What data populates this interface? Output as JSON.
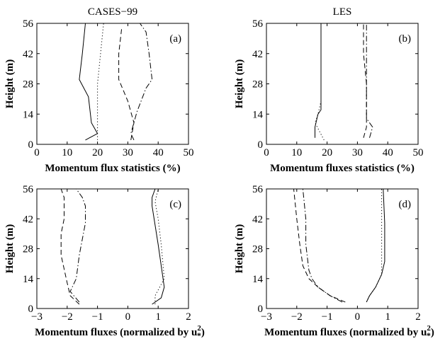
{
  "chart_data": [
    {
      "panel": "a",
      "type": "line",
      "title": "CASES−99",
      "annotation": "(a)",
      "xlabel": "Momentum flux statistics (%)",
      "ylabel": "Height (m)",
      "xlim": [
        0,
        50
      ],
      "ylim": [
        0,
        56
      ],
      "xticks": [
        "0",
        "10",
        "20",
        "30",
        "40",
        "50"
      ],
      "yticks": [
        "0",
        "14",
        "28",
        "42",
        "56"
      ],
      "series": [
        {
          "style": "solid",
          "points": [
            [
              16,
              2
            ],
            [
              20,
              5
            ],
            [
              18,
              10
            ],
            [
              17,
              22
            ],
            [
              14,
              30
            ],
            [
              15,
              42
            ],
            [
              16,
              56
            ]
          ]
        },
        {
          "style": "dotted",
          "points": [
            [
              20,
              2
            ],
            [
              20,
              10
            ],
            [
              20,
              28
            ],
            [
              21,
              42
            ],
            [
              22,
              56
            ]
          ]
        },
        {
          "style": "dashed",
          "points": [
            [
              31,
              2
            ],
            [
              32,
              10
            ],
            [
              30,
              20
            ],
            [
              27,
              30
            ],
            [
              27,
              42
            ],
            [
              28,
              54
            ]
          ]
        },
        {
          "style": "dashdot",
          "points": [
            [
              32,
              2
            ],
            [
              31,
              5
            ],
            [
              33,
              15
            ],
            [
              36,
              26
            ],
            [
              38,
              30
            ],
            [
              37,
              42
            ],
            [
              36,
              52
            ],
            [
              34,
              56
            ]
          ]
        }
      ]
    },
    {
      "panel": "b",
      "type": "line",
      "title": "LES",
      "annotation": "(b)",
      "xlabel": "Momentum fluxes statistics (%)",
      "ylabel": "Height (m)",
      "xlim": [
        0,
        50
      ],
      "ylim": [
        0,
        56
      ],
      "xticks": [
        "0",
        "10",
        "20",
        "30",
        "40",
        "50"
      ],
      "yticks": [
        "0",
        "14",
        "28",
        "42",
        "56"
      ],
      "series": [
        {
          "style": "solid",
          "points": [
            [
              16,
              3
            ],
            [
              16,
              8
            ],
            [
              17,
              14
            ],
            [
              18,
              16
            ],
            [
              18,
              30
            ],
            [
              18,
              42
            ],
            [
              18,
              56
            ]
          ]
        },
        {
          "style": "dotted",
          "points": [
            [
              19,
              2
            ],
            [
              16,
              10
            ],
            [
              17,
              14
            ],
            [
              18,
              20
            ],
            [
              18,
              42
            ],
            [
              18,
              56
            ]
          ]
        },
        {
          "style": "dashed",
          "points": [
            [
              32,
              3
            ],
            [
              33,
              8
            ],
            [
              33,
              14
            ],
            [
              33,
              28
            ],
            [
              32,
              42
            ],
            [
              32,
              56
            ]
          ]
        },
        {
          "style": "dashdot",
          "points": [
            [
              34,
              3
            ],
            [
              35,
              8
            ],
            [
              33,
              12
            ],
            [
              33,
              20
            ],
            [
              33,
              42
            ],
            [
              33,
              56
            ]
          ]
        }
      ]
    },
    {
      "panel": "c",
      "type": "line",
      "title": "",
      "annotation": "(c)",
      "xlabel": "Momentum fluxes (normalized by u",
      "xlabel_sup": "2",
      "xlabel_sub": "*",
      "xlabel_end": ")",
      "ylabel": "Height (m)",
      "xlim": [
        -3,
        2
      ],
      "ylim": [
        0,
        56
      ],
      "xticks": [
        "−3",
        "−2",
        "−1",
        "0",
        "1",
        "2"
      ],
      "yticks": [
        "0",
        "14",
        "28",
        "42",
        "56"
      ],
      "series": [
        {
          "style": "solid",
          "points": [
            [
              0.8,
              2
            ],
            [
              1.1,
              5
            ],
            [
              1.2,
              10
            ],
            [
              1.1,
              20
            ],
            [
              1.0,
              30
            ],
            [
              0.8,
              48
            ],
            [
              0.8,
              52
            ],
            [
              0.9,
              56
            ]
          ]
        },
        {
          "style": "dotted",
          "points": [
            [
              0.9,
              2
            ],
            [
              0.9,
              6
            ],
            [
              1.2,
              14
            ],
            [
              1.1,
              30
            ],
            [
              1.0,
              42
            ],
            [
              0.9,
              50
            ],
            [
              1.0,
              56
            ]
          ]
        },
        {
          "style": "dashed",
          "points": [
            [
              -1.6,
              2
            ],
            [
              -1.9,
              6
            ],
            [
              -2.0,
              12
            ],
            [
              -2.2,
              25
            ],
            [
              -2.2,
              35
            ],
            [
              -2.1,
              42
            ],
            [
              -2.1,
              52
            ],
            [
              -2.2,
              56
            ]
          ]
        },
        {
          "style": "dashdot",
          "points": [
            [
              -1.6,
              3
            ],
            [
              -1.9,
              8
            ],
            [
              -1.7,
              14
            ],
            [
              -1.6,
              25
            ],
            [
              -1.4,
              40
            ],
            [
              -1.4,
              48
            ],
            [
              -1.5,
              52
            ],
            [
              -1.7,
              56
            ]
          ]
        }
      ]
    },
    {
      "panel": "d",
      "type": "line",
      "title": "",
      "annotation": "(d)",
      "xlabel": "Momentum fluxes (normalized by u",
      "xlabel_sup": "2",
      "xlabel_sub": "*",
      "xlabel_end": ")",
      "ylabel": "Height (m)",
      "xlim": [
        -3,
        2
      ],
      "ylim": [
        0,
        56
      ],
      "xticks": [
        "−3",
        "−2",
        "−1",
        "0",
        "1",
        "2"
      ],
      "yticks": [
        "0",
        "14",
        "28",
        "42",
        "56"
      ],
      "series": [
        {
          "style": "solid",
          "points": [
            [
              0.3,
              3
            ],
            [
              0.4,
              6
            ],
            [
              0.6,
              10
            ],
            [
              0.8,
              16
            ],
            [
              0.9,
              22
            ],
            [
              0.9,
              40
            ],
            [
              0.85,
              56
            ]
          ]
        },
        {
          "style": "dotted",
          "points": [
            [
              0.3,
              3
            ],
            [
              0.4,
              6
            ],
            [
              0.6,
              10
            ],
            [
              0.8,
              16
            ],
            [
              0.8,
              22
            ],
            [
              0.8,
              40
            ],
            [
              0.8,
              56
            ]
          ]
        },
        {
          "style": "dashed",
          "points": [
            [
              -0.4,
              3
            ],
            [
              -0.9,
              6
            ],
            [
              -1.3,
              10
            ],
            [
              -1.6,
              14
            ],
            [
              -1.8,
              20
            ],
            [
              -1.9,
              30
            ],
            [
              -2.0,
              42
            ],
            [
              -2.1,
              56
            ]
          ]
        },
        {
          "style": "dashdot",
          "points": [
            [
              -0.5,
              3
            ],
            [
              -0.9,
              6
            ],
            [
              -1.3,
              10
            ],
            [
              -1.5,
              14
            ],
            [
              -1.6,
              18
            ],
            [
              -1.7,
              30
            ],
            [
              -1.7,
              42
            ],
            [
              -1.8,
              56
            ]
          ]
        }
      ]
    }
  ]
}
